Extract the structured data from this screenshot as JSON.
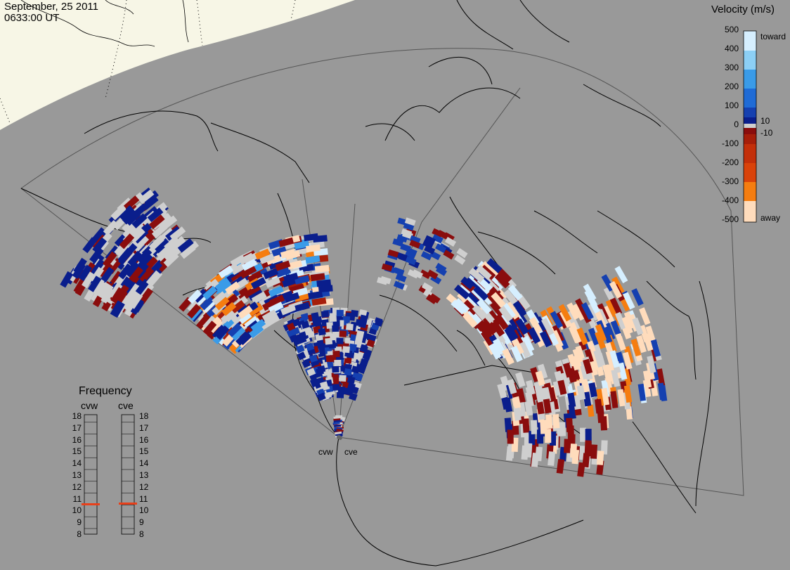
{
  "header": {
    "date": "September, 25 2011",
    "time": "0633:00 UT"
  },
  "velocity_scale": {
    "title": "Velocity (m/s)",
    "ticks": [
      "500",
      "400",
      "300",
      "200",
      "100",
      "0",
      "-100",
      "-200",
      "-300",
      "-400",
      "-500"
    ],
    "side_labels": {
      "toward": "toward",
      "plus10": "10",
      "minus10": "-10",
      "away": "away"
    }
  },
  "frequency_panel": {
    "title": "Frequency",
    "radars": [
      "cvw",
      "cve"
    ],
    "ticks": [
      "18",
      "17",
      "16",
      "15",
      "14",
      "13",
      "12",
      "11",
      "10",
      "9",
      "8"
    ],
    "cvw_frequency_mhz": 10.5,
    "cve_frequency_mhz": 10.6,
    "marker_color": "#e8401a"
  },
  "sites": {
    "west": "cvw",
    "east": "cve"
  },
  "colors": {
    "background": "#999999",
    "daylight": "#f7f6e6",
    "ground_scatter": "#cfcfcf",
    "toward": [
      "#0a1e8c",
      "#1540b0",
      "#1f6bd6",
      "#3a9be8",
      "#8ccff5",
      "#d6efff"
    ],
    "away": [
      "#8a0d0d",
      "#a61e0a",
      "#d9420a",
      "#f57d10",
      "#fbb26a",
      "#ffdcbc"
    ]
  }
}
